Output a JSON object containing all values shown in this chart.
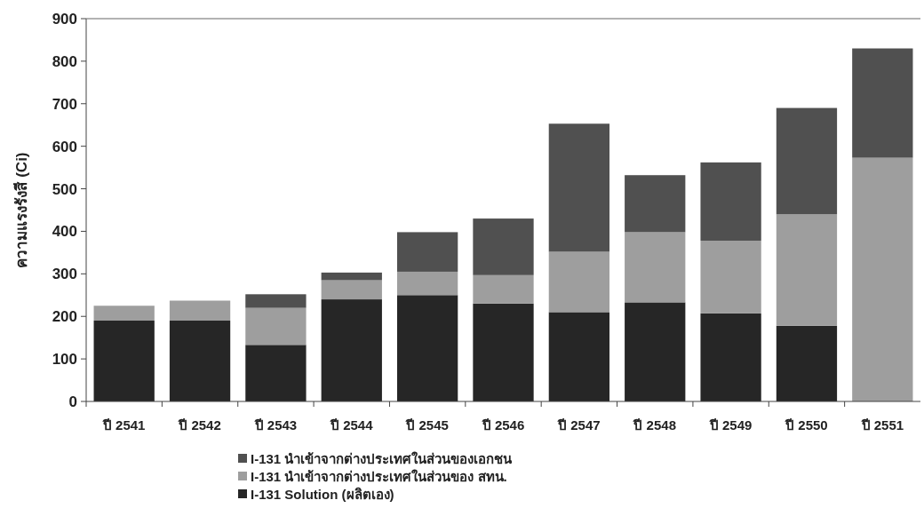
{
  "chart_data": {
    "type": "bar",
    "stacked": true,
    "ylabel": "ความแรงรังสี (Ci)",
    "ylim": [
      0,
      900
    ],
    "yticks": [
      0,
      100,
      200,
      300,
      400,
      500,
      600,
      700,
      800,
      900
    ],
    "grid": false,
    "legend": "bottom",
    "categories": [
      "ปี 2541",
      "ปี 2542",
      "ปี 2543",
      "ปี 2544",
      "ปี 2545",
      "ปี 2546",
      "ปี 2547",
      "ปี 2548",
      "ปี 2549",
      "ปี 2550",
      "ปี 2551"
    ],
    "series": [
      {
        "name": "I-131 Solution  (ผลิตเอง)",
        "color": "#262626",
        "values": [
          190,
          190,
          133,
          240,
          250,
          230,
          210,
          233,
          207,
          178,
          0
        ]
      },
      {
        "name": "I-131 นำเข้าจากต่างประเทศในส่วนของ สทน.",
        "color": "#9e9e9e",
        "values": [
          35,
          47,
          87,
          45,
          55,
          67,
          142,
          165,
          171,
          262,
          573
        ]
      },
      {
        "name": "I-131 นำเข้าจากต่างประเทศในส่วนของเอกชน",
        "color": "#505050",
        "values": [
          0,
          0,
          32,
          18,
          93,
          133,
          301,
          134,
          184,
          250,
          257
        ]
      }
    ]
  }
}
